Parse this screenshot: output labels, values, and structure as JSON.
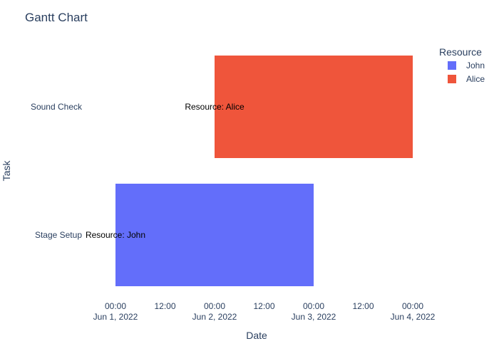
{
  "chart_data": {
    "type": "bar",
    "orientation": "horizontal-timeline",
    "title": "Gantt Chart",
    "xlabel": "Date",
    "ylabel": "Task",
    "x_range": [
      "2022-06-01 00:00",
      "2022-06-04 00:00"
    ],
    "x_ticks": [
      {
        "t": "2022-06-01 00:00",
        "line1": "00:00",
        "line2": "Jun 1, 2022"
      },
      {
        "t": "2022-06-01 12:00",
        "line1": "12:00",
        "line2": ""
      },
      {
        "t": "2022-06-02 00:00",
        "line1": "00:00",
        "line2": "Jun 2, 2022"
      },
      {
        "t": "2022-06-02 12:00",
        "line1": "12:00",
        "line2": ""
      },
      {
        "t": "2022-06-03 00:00",
        "line1": "00:00",
        "line2": "Jun 3, 2022"
      },
      {
        "t": "2022-06-03 12:00",
        "line1": "12:00",
        "line2": ""
      },
      {
        "t": "2022-06-04 00:00",
        "line1": "00:00",
        "line2": "Jun 4, 2022"
      }
    ],
    "tasks": [
      "Sound Check",
      "Stage Setup"
    ],
    "series": [
      {
        "name": "John",
        "color": "#636efa",
        "bars": [
          {
            "task": "Stage Setup",
            "start": "2022-06-01 00:00",
            "end": "2022-06-03 00:00",
            "label": "Resource: John"
          }
        ]
      },
      {
        "name": "Alice",
        "color": "#ef553b",
        "bars": [
          {
            "task": "Sound Check",
            "start": "2022-06-02 00:00",
            "end": "2022-06-04 00:00",
            "label": "Resource: Alice"
          }
        ]
      }
    ],
    "legend": {
      "title": "Resource",
      "placement": "top-right"
    },
    "grid": false
  }
}
